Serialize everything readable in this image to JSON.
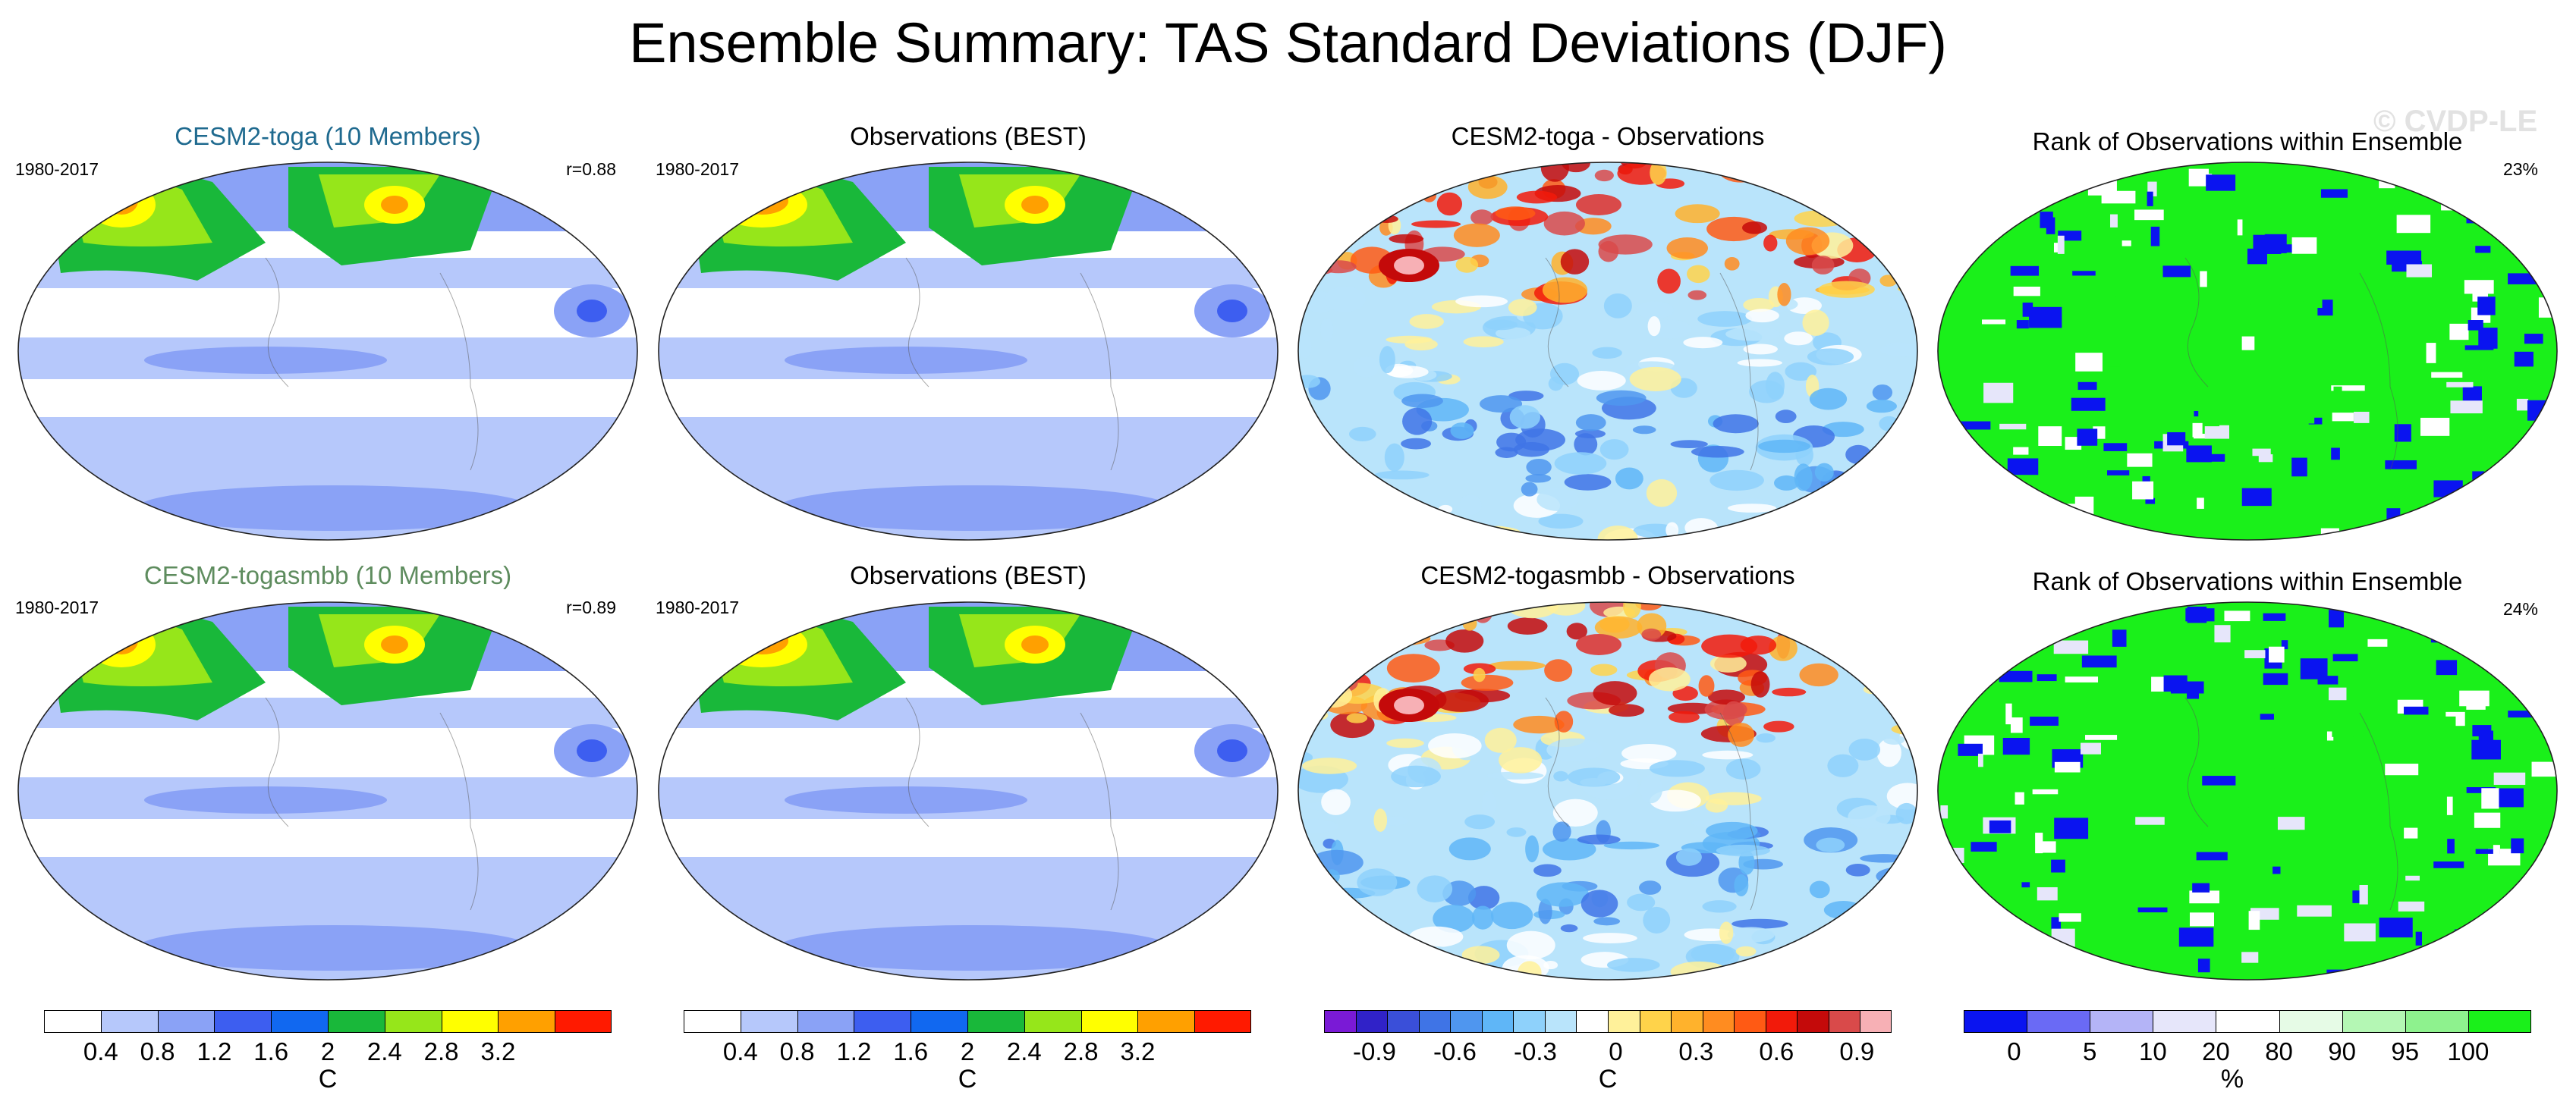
{
  "title": "Ensemble Summary: TAS Standard Deviations (DJF)",
  "watermark": "© CVDP-LE",
  "colors": {
    "cesm2_toga_title": "#1f6a8f",
    "cesm2_togasmbb_title": "#5e8c5e",
    "sd_scale": [
      "#ffffff",
      "#b6c8fb",
      "#8aa2f6",
      "#3d5ef0",
      "#1168f0",
      "#19b83a",
      "#96e61a",
      "#ffff00",
      "#ffa000",
      "#ff1a00"
    ],
    "diff_scale": [
      "#7a1ad6",
      "#3022c8",
      "#3a4fd9",
      "#3f74e6",
      "#4f96ef",
      "#5fb6f7",
      "#8ed1fb",
      "#b9e4fb",
      "#ffffff",
      "#fff19a",
      "#ffd34a",
      "#ffb22c",
      "#ff8c20",
      "#ff5a14",
      "#f21a0a",
      "#c40a0a",
      "#d94a4a",
      "#f7b0b5"
    ],
    "rank_scale": [
      "#0a14f0",
      "#6a6af5",
      "#b4b4f7",
      "#e6e6fa",
      "#ffffff",
      "#e6fbe6",
      "#b4f7b4",
      "#8ef28e",
      "#1af01a"
    ]
  },
  "chart_data": [
    {
      "type": "heatmap",
      "row": 1,
      "title": "CESM2-toga (10 Members)",
      "period": "1980-2017",
      "stat": "r=0.88",
      "colorbar_ticks": [
        "0.4",
        "0.8",
        "1.2",
        "1.6",
        "2",
        "2.4",
        "2.8",
        "3.2"
      ],
      "units": "C"
    },
    {
      "type": "heatmap",
      "row": 1,
      "title": "Observations (BEST)",
      "period": "1980-2017",
      "colorbar_ticks": [
        "0.4",
        "0.8",
        "1.2",
        "1.6",
        "2",
        "2.4",
        "2.8",
        "3.2"
      ],
      "units": "C"
    },
    {
      "type": "heatmap",
      "row": 1,
      "title": "CESM2-toga - Observations",
      "colorbar_ticks": [
        "-0.9",
        "-0.6",
        "-0.3",
        "0",
        "0.3",
        "0.6",
        "0.9"
      ],
      "units": "C"
    },
    {
      "type": "heatmap",
      "row": 1,
      "title": "Rank of Observations within Ensemble",
      "stat": "23%",
      "colorbar_ticks": [
        "0",
        "5",
        "10",
        "20",
        "80",
        "90",
        "95",
        "100"
      ],
      "units": "%"
    },
    {
      "type": "heatmap",
      "row": 2,
      "title": "CESM2-togasmbb (10 Members)",
      "period": "1980-2017",
      "stat": "r=0.89"
    },
    {
      "type": "heatmap",
      "row": 2,
      "title": "Observations (BEST)",
      "period": "1980-2017"
    },
    {
      "type": "heatmap",
      "row": 2,
      "title": "CESM2-togasmbb - Observations"
    },
    {
      "type": "heatmap",
      "row": 2,
      "title": "Rank of Observations within Ensemble",
      "stat": "24%"
    }
  ]
}
